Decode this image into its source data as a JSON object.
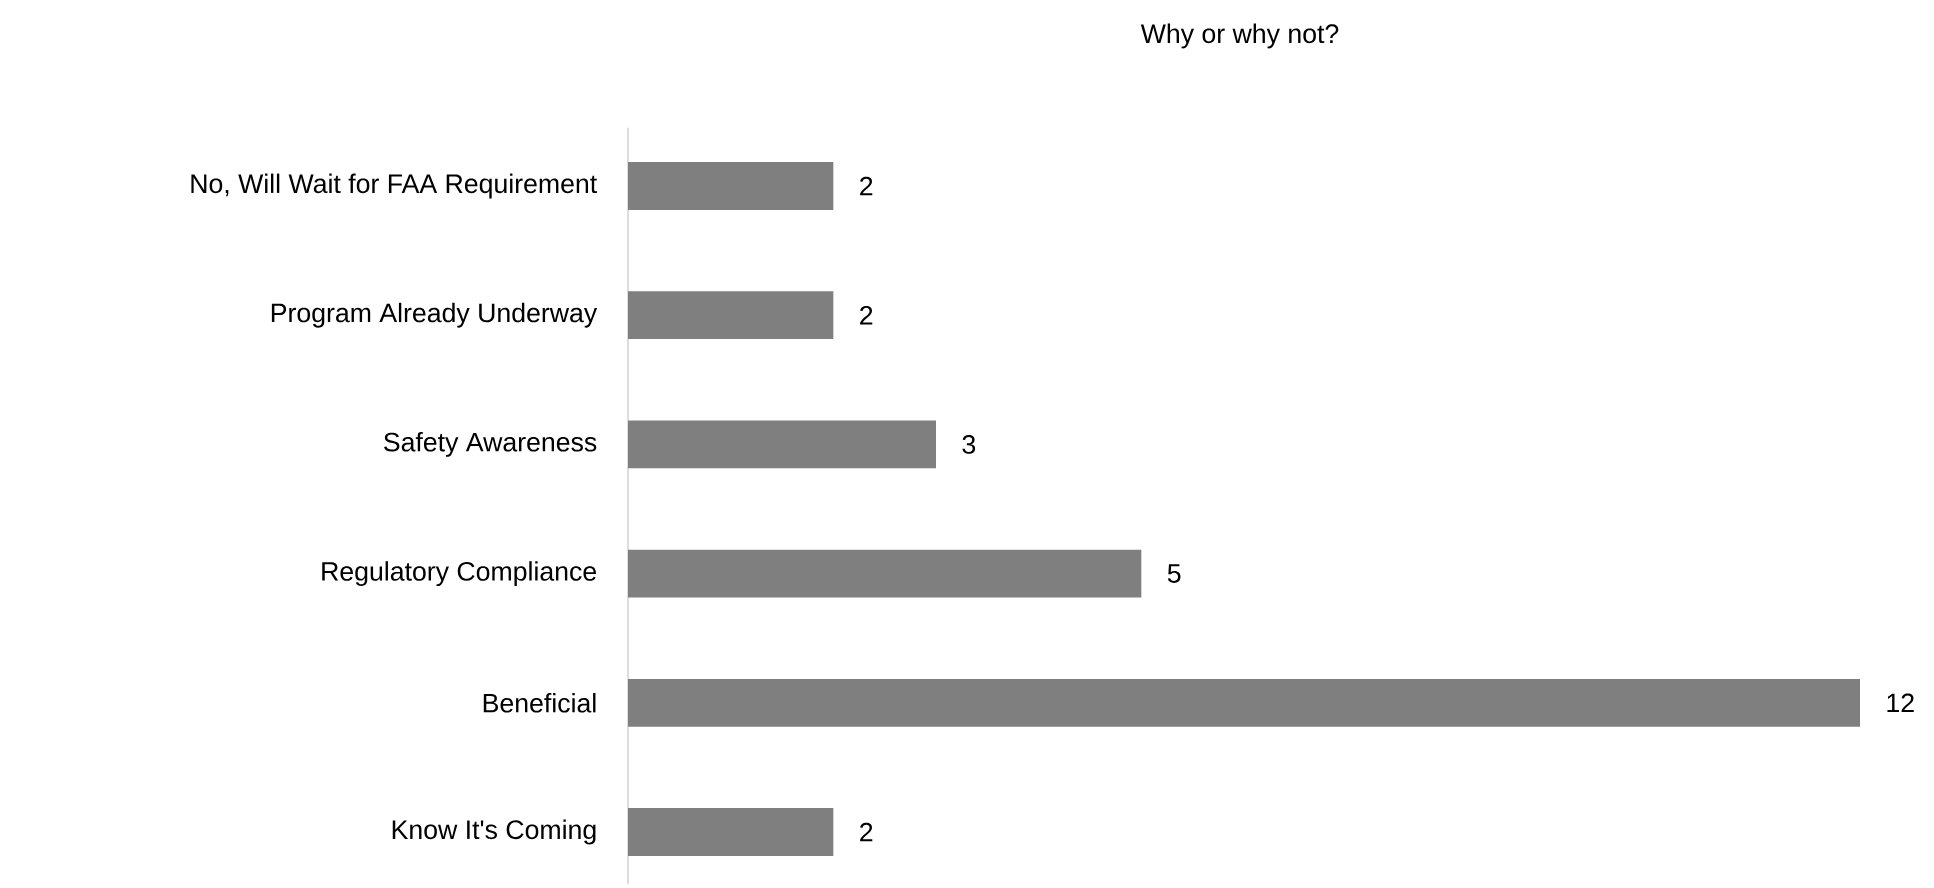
{
  "chart_data": {
    "type": "bar",
    "orientation": "horizontal",
    "title": "Why or why not?",
    "categories": [
      "No, Will Wait for FAA Requirement",
      "Program Already Underway",
      "Safety Awareness",
      "Regulatory Compliance",
      "Beneficial",
      "Know It's Coming"
    ],
    "values": [
      2,
      2,
      3,
      5,
      12,
      2
    ],
    "color": "#7f7f7f",
    "data_labels": true
  }
}
